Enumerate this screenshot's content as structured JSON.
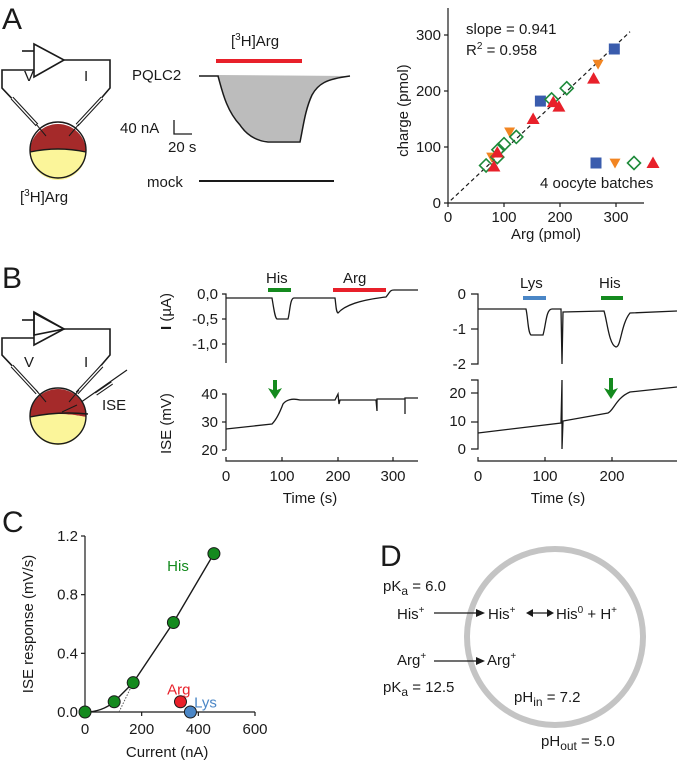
{
  "panels": {
    "A": {
      "label": "A",
      "schematic": {
        "v_label": "V",
        "i_label": "I",
        "caption": "[3H]Arg",
        "caption_pre": "[",
        "caption_sup": "3",
        "caption_post": "H]Arg"
      },
      "traces": {
        "bar_label_pre": "[",
        "bar_label_sup": "3",
        "bar_label_post": "H]Arg",
        "bar_color": "#e8202a",
        "trace1_label": "PQLC2",
        "trace2_label": "mock",
        "scale_y": "40 nA",
        "scale_x": "20 s",
        "fill_color": "#bcbcbc"
      }
    },
    "B": {
      "label": "B",
      "schematic": {
        "v_label": "V",
        "i_label": "I",
        "ise_label": "ISE"
      },
      "left": {
        "bars": [
          {
            "label": "His",
            "color": "#148a1e"
          },
          {
            "label": "Arg",
            "color": "#e8202a"
          }
        ],
        "i_ylabel_main": "I",
        "i_ylabel_unit": "(µA)",
        "i_ticks": [
          "0,0",
          "-0,5",
          "-1,0"
        ],
        "ise_ylabel": "ISE (mV)",
        "ise_ticks": [
          "40",
          "30",
          "20"
        ],
        "x_ticks": [
          "0",
          "100",
          "200",
          "300"
        ],
        "xlabel": "Time (s)"
      },
      "right": {
        "bars": [
          {
            "label": "Lys",
            "color": "#4a86c6"
          },
          {
            "label": "His",
            "color": "#148a1e"
          }
        ],
        "i_ticks": [
          "0",
          "-1",
          "-2"
        ],
        "ise_ticks": [
          "20",
          "10",
          "0"
        ],
        "x_ticks": [
          "0",
          "100",
          "200"
        ],
        "xlabel": "Time (s)"
      },
      "arrow_color": "#148a1e"
    },
    "C": {
      "label": "C"
    },
    "D": {
      "label": "D",
      "his_pka": "pKa = 6.0",
      "his_pka_pre": "pK",
      "his_pka_sub": "a",
      "his_pka_post": " = 6.0",
      "arg_pka_pre": "pK",
      "arg_pka_sub": "a",
      "arg_pka_post": " = 12.5",
      "his_out": "His",
      "his_in": "His",
      "his0": "His",
      "his0_sup": "0",
      "plus_h": " + H",
      "plus_sup": "+",
      "arg_out": "Arg",
      "arg_in": "Arg",
      "charge": "+",
      "ph_in_pre": "pH",
      "ph_in_sub": "in",
      "ph_in_post": " = 7.2",
      "ph_out_pre": "pH",
      "ph_out_sub": "out",
      "ph_out_post": " = 5.0",
      "his_color": "#148a1e",
      "arg_color": "#e8202a",
      "circle_color": "#c4c4c4"
    }
  },
  "chart_data": [
    {
      "type": "scatter",
      "panel": "A",
      "xlabel": "Arg (pmol)",
      "ylabel": "charge (pmol)",
      "xlim": [
        0,
        350
      ],
      "ylim": [
        0,
        330
      ],
      "x_ticks": [
        0,
        100,
        200,
        300
      ],
      "y_ticks": [
        0,
        100,
        200,
        300
      ],
      "annotations": [
        "slope = 0.941",
        "R2 = 0.958"
      ],
      "annotation_slope": "slope = 0.941",
      "annotation_r2_pre": "R",
      "annotation_r2_sup": "2",
      "annotation_r2_post": " = 0.958",
      "fit_line": {
        "slope": 0.941,
        "intercept": 0,
        "x_range": [
          5,
          325
        ],
        "style": "dashed"
      },
      "legend_label": "4 oocyte batches",
      "legend_placement": "bottom-right",
      "series": [
        {
          "name": "batch 1",
          "marker": "square",
          "color": "#3a5cad",
          "points": [
            [
              165,
              182
            ],
            [
              297,
              275
            ]
          ]
        },
        {
          "name": "batch 2",
          "marker": "triangle-down",
          "color": "#f28522",
          "points": [
            [
              78,
              82
            ],
            [
              110,
              127
            ],
            [
              268,
              248
            ]
          ]
        },
        {
          "name": "batch 3",
          "marker": "diamond-open",
          "color": "#1e8a3a",
          "points": [
            [
              68,
              67
            ],
            [
              88,
              82
            ],
            [
              90,
              95
            ],
            [
              100,
              105
            ],
            [
              122,
              118
            ],
            [
              185,
              185
            ],
            [
              212,
              205
            ]
          ]
        },
        {
          "name": "batch 4",
          "marker": "triangle-up",
          "color": "#e8202a",
          "points": [
            [
              82,
              65
            ],
            [
              88,
              90
            ],
            [
              152,
              150
            ],
            [
              188,
              180
            ],
            [
              198,
              172
            ],
            [
              260,
              222
            ]
          ]
        }
      ]
    },
    {
      "type": "line",
      "panel": "C",
      "xlabel": "Current  (nA)",
      "ylabel": "ISE response (mV/s)",
      "xlim": [
        0,
        600
      ],
      "ylim": [
        0,
        1.2
      ],
      "x_ticks": [
        "0",
        "200",
        "400",
        "600"
      ],
      "y_ticks": [
        "0.0",
        "0.4",
        "0.8",
        "1.2"
      ],
      "series": [
        {
          "name": "His",
          "color": "#148a1e",
          "label": "His",
          "points": [
            [
              0,
              0.0
            ],
            [
              103,
              0.07
            ],
            [
              170,
              0.2
            ],
            [
              312,
              0.61
            ],
            [
              455,
              1.08
            ]
          ]
        },
        {
          "name": "Arg",
          "color": "#e8202a",
          "label": "Arg",
          "points": [
            [
              337,
              0.07
            ]
          ]
        },
        {
          "name": "Lys",
          "color": "#4a86c6",
          "label": "Lys",
          "points": [
            [
              372,
              0.0
            ]
          ]
        }
      ],
      "extrapolation_line": {
        "x_intercept": 120,
        "style": "dotted"
      }
    }
  ]
}
